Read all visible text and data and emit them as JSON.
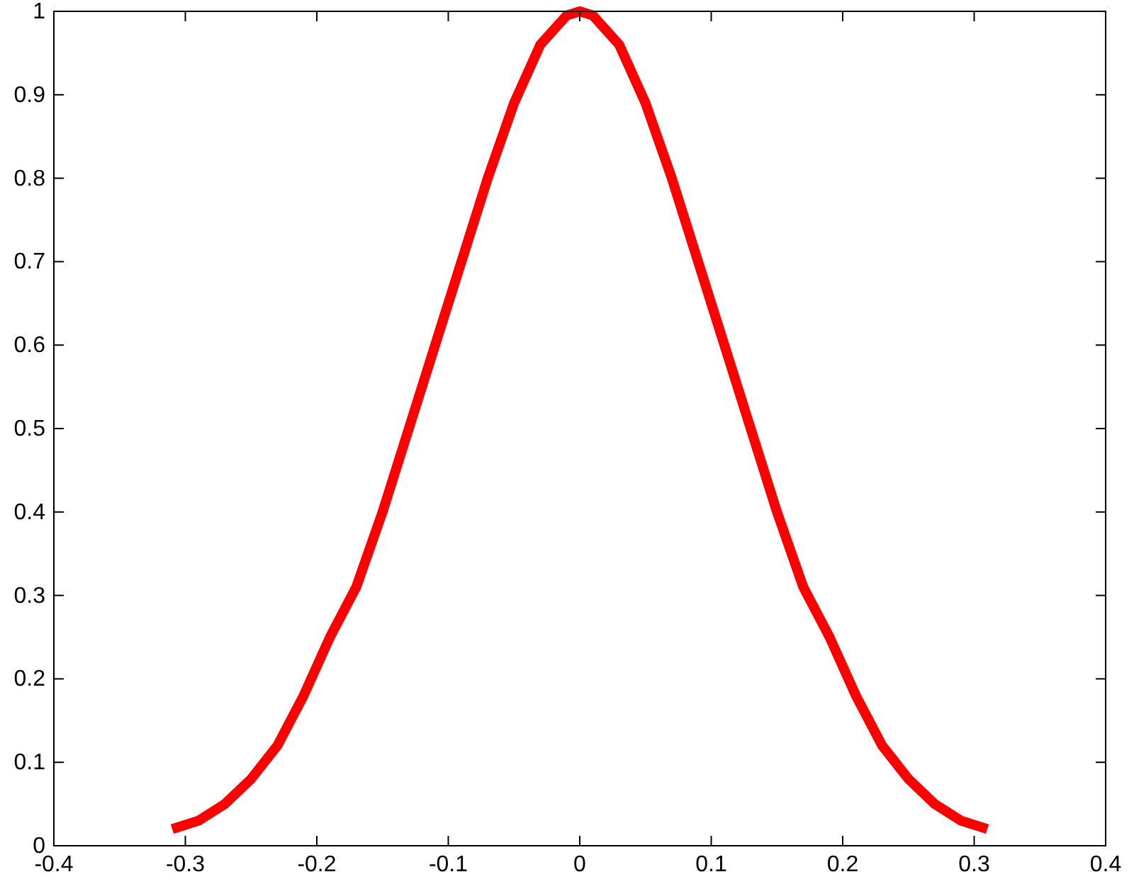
{
  "chart_data": {
    "type": "line",
    "x": [
      -0.31,
      -0.29,
      -0.27,
      -0.25,
      -0.23,
      -0.21,
      -0.19,
      -0.17,
      -0.15,
      -0.13,
      -0.11,
      -0.09,
      -0.07,
      -0.05,
      -0.03,
      -0.01,
      0,
      0.01,
      0.03,
      0.05,
      0.07,
      0.09,
      0.11,
      0.13,
      0.15,
      0.17,
      0.19,
      0.21,
      0.23,
      0.25,
      0.27,
      0.29,
      0.31
    ],
    "series": [
      {
        "color": "#ff0000",
        "values": [
          0.02,
          0.03,
          0.05,
          0.08,
          0.12,
          0.18,
          0.25,
          0.31,
          0.4,
          0.5,
          0.6,
          0.7,
          0.8,
          0.89,
          0.96,
          0.995,
          1.0,
          0.995,
          0.96,
          0.89,
          0.8,
          0.7,
          0.6,
          0.5,
          0.4,
          0.31,
          0.25,
          0.18,
          0.12,
          0.08,
          0.05,
          0.03,
          0.02
        ]
      }
    ],
    "xlim": [
      -0.4,
      0.4
    ],
    "xticks": [
      -0.4,
      -0.3,
      -0.2,
      -0.1,
      0,
      0.1,
      0.2,
      0.3,
      0.4
    ],
    "ylim": [
      0,
      1
    ],
    "yticks": [
      0,
      0.1,
      0.2,
      0.3,
      0.4,
      0.5,
      0.6,
      0.7,
      0.8,
      0.9,
      1
    ],
    "grid": false,
    "marker": "none",
    "line_style": "solid"
  }
}
